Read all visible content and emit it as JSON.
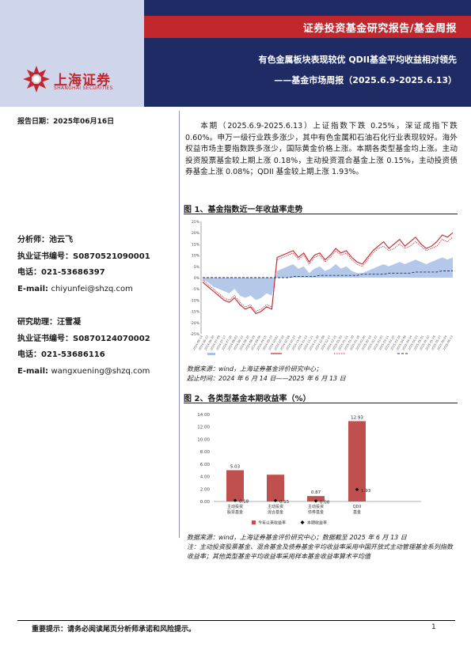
{
  "header": {
    "report_type": "证券投资基金研究报告/基金周报",
    "title_line1": "有色金属板块表现较优 QDII基金平均收益相对领先",
    "title_line2": "——基金市场周报（2025.6.9-2025.6.13）"
  },
  "brand": {
    "name_cn": "上海证券",
    "name_en": "SHANGHAI SECURITIES",
    "color_red": "#c3272e",
    "color_navy": "#1f2b64"
  },
  "report_date": "报告日期：2025年06月16日",
  "summary": "本期（2025.6.9-2025.6.13）上证指数下跌 0.25%，深证成指下跌 0.60%。申万一级行业跌多涨少，其中有色金属和石油石化行业表现较好。海外权益市场主要指数跌多涨少，国际黄金价格上涨。本期各类型基金均上涨。主动投资股票基金较上期上涨 0.18%，主动投资混合基金上涨 0.15%，主动投资债券基金上涨 0.08%；QDII 基金较上期上涨 1.93%。",
  "analyst": {
    "name_label": "分析师：",
    "name": "池云飞",
    "cert_label": "执业证书编号：",
    "cert": "S0870521090001",
    "tel_label": "电话：",
    "tel": "021-53686397",
    "email_label": "E-mail:",
    "email": "chiyunfei@shzq.com"
  },
  "assistant": {
    "name_label": "研究助理：",
    "name": "汪雪凝",
    "cert_label": "执业证书编号：",
    "cert": "S0870124070002",
    "tel_label": "电话：",
    "tel": "021-53686116",
    "email_label": "E-mail:",
    "email": "wangxuening@shzq.com"
  },
  "figure1": {
    "title": "图 1、基金指数近一年收益率走势",
    "source1": "数据来源：wind，上海证券基金评价研究中心；",
    "source2": "起止时间：2024 年 6 月 14 日——2025 年 6 月 13 日"
  },
  "figure2": {
    "title": "图 2、各类型基金本期收益率（%）",
    "source1": "数据来源：wind，上海证券基金评价研究中心；数据截至 2025 年 6 月 13 日",
    "source2": "注：主动投资股票基金、混合基金及债券基金平均收益率采用中国开放式主动管理基金系列指数收益率；其他类型基金平均收益率采用样本基金收益率算术平均值"
  },
  "chart_data": [
    {
      "type": "line",
      "x_start": "2024-06-14",
      "x_end": "2025-06-13",
      "ylim": [
        -25,
        25
      ],
      "yticks": [
        "25%",
        "20%",
        "15%",
        "10%",
        "5%",
        "0%",
        "-5%",
        "-10%",
        "-15%",
        "-20%",
        "-25%"
      ],
      "series": [
        {
          "style": "area",
          "color": "#a7bfe6",
          "values": [
            -1,
            -2,
            -4,
            -5,
            -6,
            -7,
            -5,
            -8,
            -9,
            -8,
            -10,
            -9,
            -7,
            -8,
            3,
            4,
            5,
            6,
            4,
            5,
            2,
            4,
            5,
            3,
            4,
            6,
            4,
            5,
            3,
            2,
            2,
            3,
            4,
            5,
            6,
            5,
            6,
            7,
            6,
            7,
            8,
            7,
            6,
            7,
            8,
            9,
            8,
            9
          ]
        },
        {
          "style": "line",
          "color": "#c3272e",
          "values": [
            -2,
            -4,
            -6,
            -8,
            -10,
            -11,
            -9,
            -12,
            -14,
            -13,
            -16,
            -15,
            -13,
            -14,
            9,
            10,
            11,
            12,
            9,
            11,
            7,
            10,
            11,
            8,
            10,
            13,
            11,
            12,
            9,
            7,
            6,
            9,
            12,
            14,
            16,
            13,
            15,
            17,
            14,
            16,
            18,
            15,
            13,
            14,
            16,
            19,
            18,
            20
          ]
        },
        {
          "style": "line-dotted",
          "color": "#c3272e",
          "values": [
            -1,
            -3,
            -5,
            -7,
            -9,
            -10,
            -8,
            -11,
            -13,
            -12,
            -15,
            -14,
            -12,
            -13,
            8,
            9,
            10,
            11,
            8,
            10,
            6,
            9,
            10,
            7,
            9,
            12,
            10,
            11,
            8,
            6,
            5,
            8,
            11,
            13,
            14,
            12,
            13,
            15,
            13,
            14,
            16,
            14,
            12,
            13,
            14,
            17,
            16,
            18
          ]
        },
        {
          "style": "line-dash",
          "color": "#1f2b64",
          "values": [
            0,
            0,
            0,
            0,
            0,
            0,
            0,
            0,
            0,
            0,
            0,
            0,
            0,
            0,
            0,
            0,
            0,
            0.5,
            0.5,
            0.5,
            0.5,
            0.5,
            1,
            1,
            1,
            1,
            1,
            1,
            1,
            1,
            1.5,
            1.5,
            1.5,
            1.5,
            1.5,
            2,
            2,
            2,
            2,
            2,
            2.5,
            2.5,
            2.5,
            2.5,
            2.5,
            3,
            3,
            3
          ]
        }
      ]
    },
    {
      "type": "bar",
      "categories": [
        "主动投资股票基金",
        "主动投资混合基金",
        "主动投资债券基金",
        "QDII基金"
      ],
      "ylim": [
        0,
        14
      ],
      "yticks": [
        "14.00",
        "12.00",
        "10.00",
        "8.00",
        "6.00",
        "4.00",
        "2.00",
        "0.00"
      ],
      "series": [
        {
          "name": "今年以来收益率",
          "values": [
            5.03,
            4.31,
            0.87,
            12.93
          ],
          "labels": [
            "5.03",
            "",
            "0.87",
            "12.93"
          ],
          "color": "#c0504d"
        },
        {
          "name": "本期收益率",
          "values": [
            0.18,
            0.15,
            0.08,
            1.93
          ],
          "labels": [
            "0.18",
            "0.15",
            "0.08",
            "1.93"
          ],
          "color": "#000000"
        }
      ]
    }
  ],
  "footer": {
    "notice": "重要提示：请务必阅读尾页分析师承诺和风险提示。",
    "page": "1"
  }
}
